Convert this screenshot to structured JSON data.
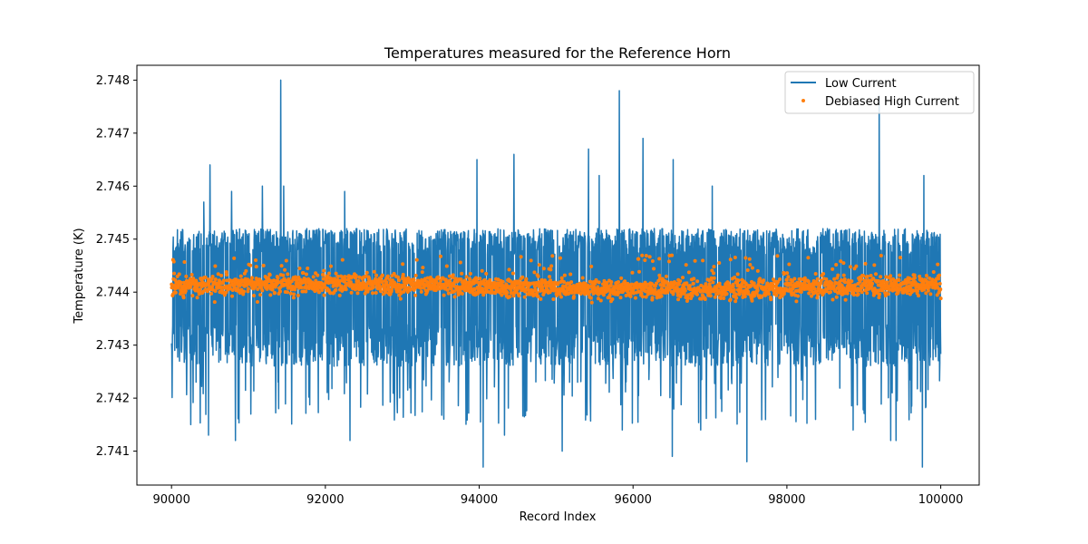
{
  "chart_data": {
    "type": "line",
    "title": "Temperatures measured for the Reference Horn",
    "xlabel": "Record Index",
    "ylabel": "Temperature (K)",
    "xlim": [
      89550,
      100500
    ],
    "ylim": [
      2.74036,
      2.74828
    ],
    "x_ticks": [
      90000,
      92000,
      94000,
      96000,
      98000,
      100000
    ],
    "y_ticks": [
      2.741,
      2.742,
      2.743,
      2.744,
      2.745,
      2.746,
      2.747,
      2.748
    ],
    "x_range": [
      90000,
      100000
    ],
    "legend_position": "top-right",
    "series": [
      {
        "name": "Low Current",
        "kind": "line",
        "color": "#1f77b4",
        "summary": {
          "center": 2.7441,
          "band_low": 2.743,
          "band_high": 2.7452,
          "min": 2.7407,
          "max": 2.748
        },
        "spikes": [
          {
            "x": 91420,
            "y": 2.748
          },
          {
            "x": 95820,
            "y": 2.7478
          },
          {
            "x": 99200,
            "y": 2.7477
          },
          {
            "x": 96130,
            "y": 2.7469
          },
          {
            "x": 95420,
            "y": 2.7467
          },
          {
            "x": 96520,
            "y": 2.7465
          },
          {
            "x": 90500,
            "y": 2.7464
          },
          {
            "x": 94450,
            "y": 2.7466
          },
          {
            "x": 93970,
            "y": 2.7465
          },
          {
            "x": 94050,
            "y": 2.7463
          },
          {
            "x": 99780,
            "y": 2.7462
          },
          {
            "x": 95560,
            "y": 2.7462
          },
          {
            "x": 91460,
            "y": 2.746
          },
          {
            "x": 97030,
            "y": 2.746
          },
          {
            "x": 92250,
            "y": 2.7459
          },
          {
            "x": 90780,
            "y": 2.7459
          },
          {
            "x": 91180,
            "y": 2.746
          },
          {
            "x": 90420,
            "y": 2.7457
          },
          {
            "x": 94050,
            "y": 2.7407
          },
          {
            "x": 99760,
            "y": 2.7407
          },
          {
            "x": 97480,
            "y": 2.7408
          },
          {
            "x": 92320,
            "y": 2.7412
          },
          {
            "x": 90830,
            "y": 2.7412
          },
          {
            "x": 96510,
            "y": 2.7409
          },
          {
            "x": 95080,
            "y": 2.741
          },
          {
            "x": 99350,
            "y": 2.7412
          },
          {
            "x": 99420,
            "y": 2.7412
          },
          {
            "x": 90480,
            "y": 2.7413
          },
          {
            "x": 94330,
            "y": 2.7413
          },
          {
            "x": 90250,
            "y": 2.7415
          },
          {
            "x": 95860,
            "y": 2.7414
          },
          {
            "x": 96880,
            "y": 2.7414
          },
          {
            "x": 98860,
            "y": 2.7414
          }
        ]
      },
      {
        "name": "Debiased High Current",
        "kind": "scatter",
        "color": "#ff7f0e",
        "summary": {
          "center": 2.7441,
          "band_low": 2.7439,
          "band_high": 2.7443,
          "min": 2.7438,
          "max": 2.7447
        }
      }
    ]
  }
}
